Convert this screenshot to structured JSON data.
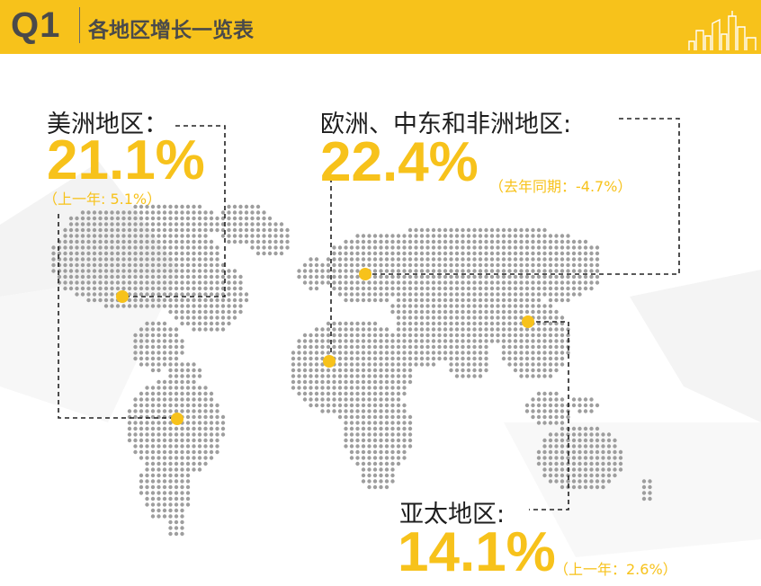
{
  "header": {
    "quarter": "Q1",
    "title": "各地区增长一览表"
  },
  "regions": {
    "americas": {
      "label": "美洲地区：",
      "growth": "21.1%",
      "prev": "（上一年: 5.1%）"
    },
    "emea": {
      "label": "欧洲、中东和非洲地区:",
      "growth": "22.4%",
      "prev": "（去年同期：-4.7%）"
    },
    "apac": {
      "label": "亚太地区:",
      "growth": "14.1%",
      "prev": "（上一年：2.6%）"
    }
  },
  "colors": {
    "accent": "#F7C21B",
    "text": "#1e1e1e",
    "header_text": "#4a4a4a",
    "map_dot": "#9e9e9e"
  },
  "icons": {
    "skyline": "city-skyline-icon",
    "marker": "location-dot-icon"
  }
}
